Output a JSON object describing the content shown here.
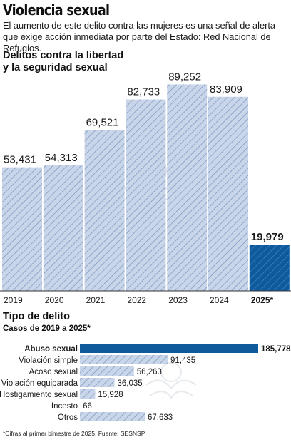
{
  "header": {
    "title": "Violencia sexual",
    "subtitle": "El aumento de este delito contra las mujeres es una señal de alerta que exige acción inmediata por parte del Estado: Red Nacional de Refugios."
  },
  "section1": {
    "title_line1": "Delitos contra la libertad",
    "title_line2": "y la seguridad sexual"
  },
  "section2": {
    "title": "Tipo de delito",
    "subtitle": "Casos de 2019 a 2025*"
  },
  "footnote": "*Cifras al primer bimestre de 2025. Fuente: SESNSP.",
  "colors": {
    "hatch_fill": "#c9d6ea",
    "hatch_stroke": "#8fa6c9",
    "highlight": "#0f5a9a"
  },
  "chart_data": [
    {
      "type": "bar",
      "title": "Delitos contra la libertad y la seguridad sexual",
      "categories": [
        "2019",
        "2020",
        "2021",
        "2022",
        "2023",
        "2024",
        "2025*"
      ],
      "values": [
        53431,
        54313,
        69521,
        82733,
        89252,
        83909,
        19979
      ],
      "value_labels": [
        "53,431",
        "54,313",
        "69,521",
        "82,733",
        "89,252",
        "83,909",
        "19,979"
      ],
      "highlight_index": 6,
      "ylim": [
        0,
        90000
      ],
      "grid": false
    },
    {
      "type": "bar",
      "orientation": "horizontal",
      "title": "Tipo de delito",
      "categories": [
        "Abuso sexual",
        "Violación simple",
        "Acoso sexual",
        "Violación equiparada",
        "Hostigamiento sexual",
        "Incesto",
        "Otros"
      ],
      "values": [
        185778,
        91435,
        56263,
        36035,
        15928,
        66,
        67633
      ],
      "value_labels": [
        "185,778",
        "91,435",
        "56,263",
        "36,035",
        "15,928",
        "66",
        "67,633"
      ],
      "highlight_index": 0,
      "xlim": [
        0,
        185778
      ],
      "grid": false
    }
  ]
}
